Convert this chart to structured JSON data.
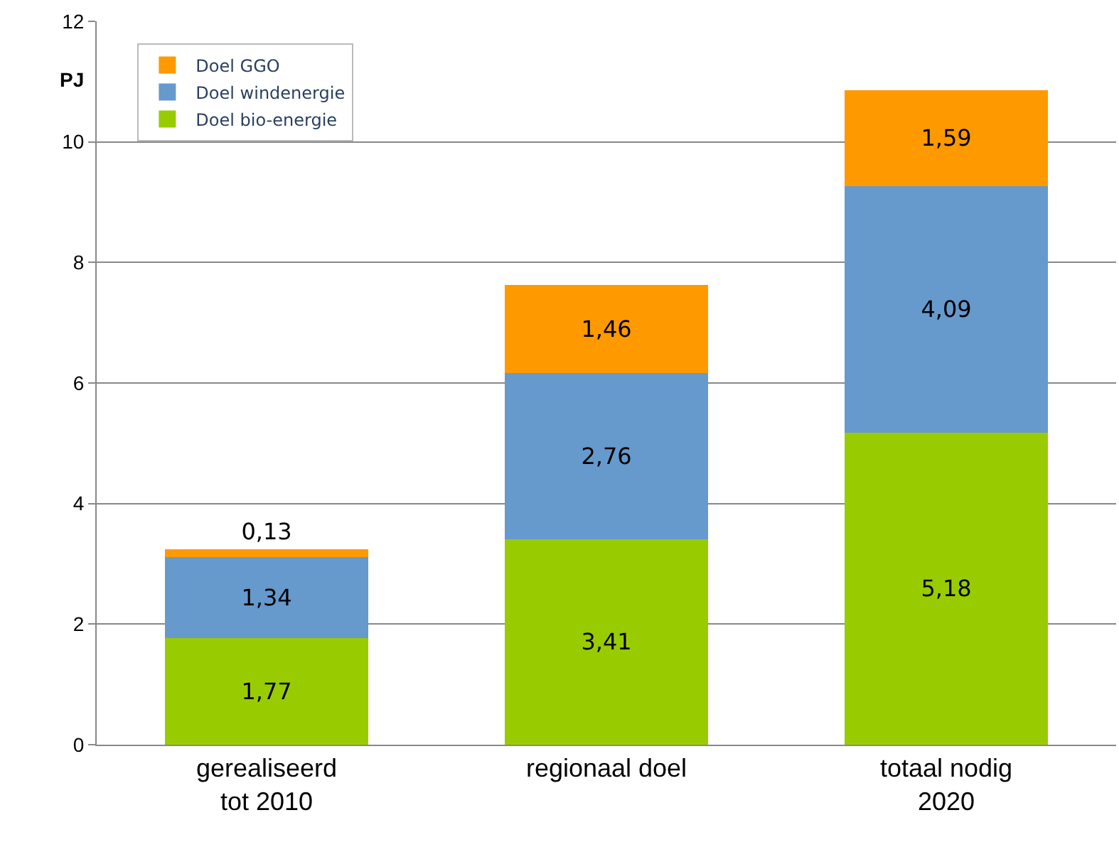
{
  "chart_data": {
    "type": "bar",
    "stacked": true,
    "ylabel": "PJ",
    "categories": [
      "gerealiseerd\ntot 2010",
      "regionaal doel",
      "totaal nodig\n2020"
    ],
    "series": [
      {
        "name": "Doel bio-energie",
        "color": "#99cc00",
        "values": [
          1.77,
          3.41,
          5.18
        ],
        "value_labels": [
          "1,77",
          "3,41",
          "5,18"
        ]
      },
      {
        "name": "Doel windenergie",
        "color": "#6699cc",
        "values": [
          1.34,
          2.76,
          4.09
        ],
        "value_labels": [
          "1,34",
          "2,76",
          "4,09"
        ]
      },
      {
        "name": "Doel GGO",
        "color": "#ff9900",
        "values": [
          0.13,
          1.46,
          1.59
        ],
        "value_labels": [
          "0,13",
          "1,46",
          "1,59"
        ]
      }
    ],
    "ylim": [
      0,
      12
    ],
    "yticks": [
      0,
      2,
      4,
      6,
      8,
      10,
      12
    ],
    "grid": "y",
    "legend": "top left"
  }
}
